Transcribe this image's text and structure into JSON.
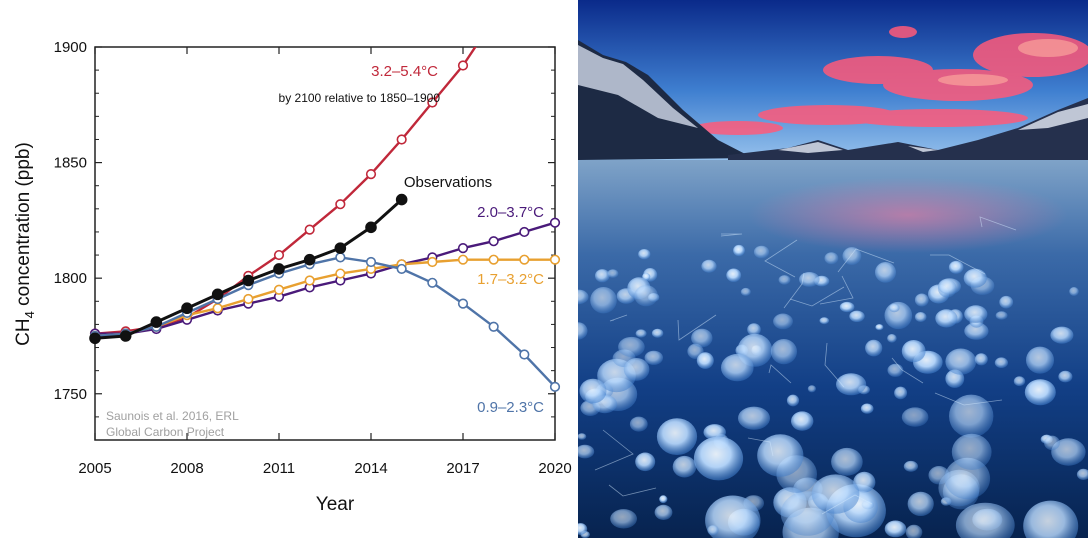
{
  "chart_data": {
    "type": "line",
    "xlabel": "Year",
    "ylabel_main": "CH",
    "ylabel_sub": "4",
    "ylabel_rest": " concentration (ppb)",
    "xlim": [
      2005,
      2020
    ],
    "ylim": [
      1730,
      1900
    ],
    "xticks": [
      2005,
      2008,
      2011,
      2014,
      2017,
      2020
    ],
    "yticks": [
      1750,
      1800,
      1850,
      1900
    ],
    "grid": false,
    "series": [
      {
        "name": "3.2–5.4°C",
        "color": "#c0283a",
        "x": [
          2005,
          2006,
          2007,
          2008,
          2009,
          2010,
          2011,
          2012,
          2013,
          2014,
          2015,
          2016,
          2017,
          2018
        ],
        "y": [
          1776,
          1777,
          1779,
          1783,
          1791,
          1801,
          1810,
          1821,
          1832,
          1845,
          1860,
          1876,
          1892,
          1912
        ]
      },
      {
        "name": "2.0–3.7°C",
        "color": "#4a1a7a",
        "x": [
          2005,
          2006,
          2007,
          2008,
          2009,
          2010,
          2011,
          2012,
          2013,
          2014,
          2015,
          2016,
          2017,
          2018,
          2019,
          2020
        ],
        "y": [
          1776,
          1776,
          1778,
          1782,
          1786,
          1789,
          1792,
          1796,
          1799,
          1802,
          1806,
          1809,
          1813,
          1816,
          1820,
          1824
        ]
      },
      {
        "name": "1.7–3.2°C",
        "color": "#e8a030",
        "x": [
          2005,
          2006,
          2007,
          2008,
          2009,
          2010,
          2011,
          2012,
          2013,
          2014,
          2015,
          2016,
          2017,
          2018,
          2019,
          2020
        ],
        "y": [
          1775,
          1776,
          1779,
          1784,
          1787,
          1791,
          1795,
          1799,
          1802,
          1804,
          1806,
          1807,
          1808,
          1808,
          1808,
          1808
        ]
      },
      {
        "name": "0.9–2.3°C",
        "color": "#4f74a8",
        "x": [
          2005,
          2006,
          2007,
          2008,
          2009,
          2010,
          2011,
          2012,
          2013,
          2014,
          2015,
          2016,
          2017,
          2018,
          2019,
          2020
        ],
        "y": [
          1775,
          1776,
          1779,
          1785,
          1791,
          1797,
          1802,
          1806,
          1809,
          1807,
          1804,
          1798,
          1789,
          1779,
          1767,
          1753
        ]
      },
      {
        "name": "Observations",
        "color": "#111111",
        "filled": true,
        "x": [
          2005,
          2006,
          2007,
          2008,
          2009,
          2010,
          2011,
          2012,
          2013,
          2014,
          2015
        ],
        "y": [
          1774,
          1775,
          1781,
          1787,
          1793,
          1799,
          1804,
          1808,
          1813,
          1822,
          1834
        ]
      }
    ],
    "annotations": {
      "subtitle": "by 2100 relative to 1850–1900",
      "source_line1": "Saunois et al. 2016, ERL",
      "source_line2": "Global Carbon Project"
    }
  },
  "photo": {
    "colors": {
      "sky_top": "#0a2a8a",
      "sky_mid": "#3f7fd0",
      "cloud": "#ff5a7a",
      "ice_light": "#cfe6ff",
      "ice_deep": "#0b2f6e"
    }
  }
}
